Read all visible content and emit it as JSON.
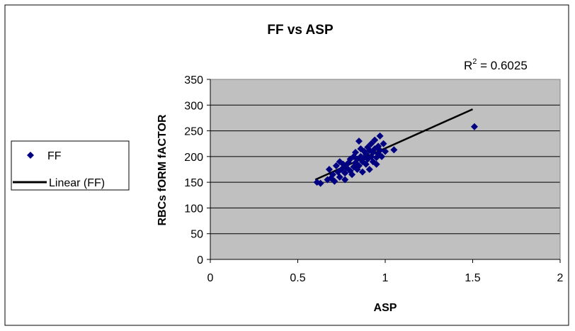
{
  "chart_data": {
    "type": "scatter",
    "title": "FF vs ASP",
    "xlabel": "ASP",
    "ylabel": "RBCs fORM fACTOR",
    "xlim": [
      0,
      2
    ],
    "ylim": [
      0,
      350
    ],
    "xticks": [
      0,
      0.5,
      1,
      1.5,
      2
    ],
    "xtick_labels": [
      "0",
      "0.5",
      "1",
      "1.5",
      "2"
    ],
    "yticks": [
      0,
      50,
      100,
      150,
      200,
      250,
      300,
      350
    ],
    "ytick_labels": [
      "0",
      "50",
      "100",
      "150",
      "200",
      "250",
      "300",
      "350"
    ],
    "grid": "horizontal",
    "legend_position": "left",
    "plot_background": "#C0C0C0",
    "series": [
      {
        "name": "FF",
        "marker": "diamond",
        "color": "#000080",
        "points": [
          [
            0.61,
            150
          ],
          [
            0.63,
            148
          ],
          [
            0.67,
            155
          ],
          [
            0.68,
            175
          ],
          [
            0.69,
            158
          ],
          [
            0.7,
            165
          ],
          [
            0.71,
            152
          ],
          [
            0.72,
            182
          ],
          [
            0.73,
            170
          ],
          [
            0.74,
            190
          ],
          [
            0.74,
            160
          ],
          [
            0.75,
            175
          ],
          [
            0.76,
            185
          ],
          [
            0.77,
            155
          ],
          [
            0.77,
            168
          ],
          [
            0.78,
            178
          ],
          [
            0.79,
            188
          ],
          [
            0.8,
            172
          ],
          [
            0.8,
            195
          ],
          [
            0.81,
            165
          ],
          [
            0.82,
            180
          ],
          [
            0.82,
            200
          ],
          [
            0.83,
            188
          ],
          [
            0.83,
            208
          ],
          [
            0.84,
            175
          ],
          [
            0.84,
            195
          ],
          [
            0.85,
            230
          ],
          [
            0.85,
            182
          ],
          [
            0.86,
            200
          ],
          [
            0.86,
            215
          ],
          [
            0.87,
            190
          ],
          [
            0.87,
            170
          ],
          [
            0.88,
            210
          ],
          [
            0.88,
            198
          ],
          [
            0.89,
            205
          ],
          [
            0.89,
            185
          ],
          [
            0.9,
            218
          ],
          [
            0.9,
            195
          ],
          [
            0.91,
            175
          ],
          [
            0.91,
            212
          ],
          [
            0.92,
            200
          ],
          [
            0.92,
            225
          ],
          [
            0.93,
            190
          ],
          [
            0.93,
            208
          ],
          [
            0.94,
            215
          ],
          [
            0.94,
            232
          ],
          [
            0.95,
            198
          ],
          [
            0.95,
            185
          ],
          [
            0.96,
            220
          ],
          [
            0.96,
            205
          ],
          [
            0.97,
            240
          ],
          [
            0.97,
            212
          ],
          [
            0.98,
            200
          ],
          [
            0.99,
            225
          ],
          [
            1.0,
            210
          ],
          [
            1.05,
            213
          ],
          [
            1.51,
            258
          ]
        ]
      }
    ],
    "trendline": {
      "name": "Linear (FF)",
      "type": "linear",
      "color": "#000000",
      "from": [
        0.6,
        155
      ],
      "to": [
        1.5,
        292
      ],
      "r2_label": "R",
      "r2_exponent": "2",
      "r2_value": " = 0.6025"
    }
  }
}
